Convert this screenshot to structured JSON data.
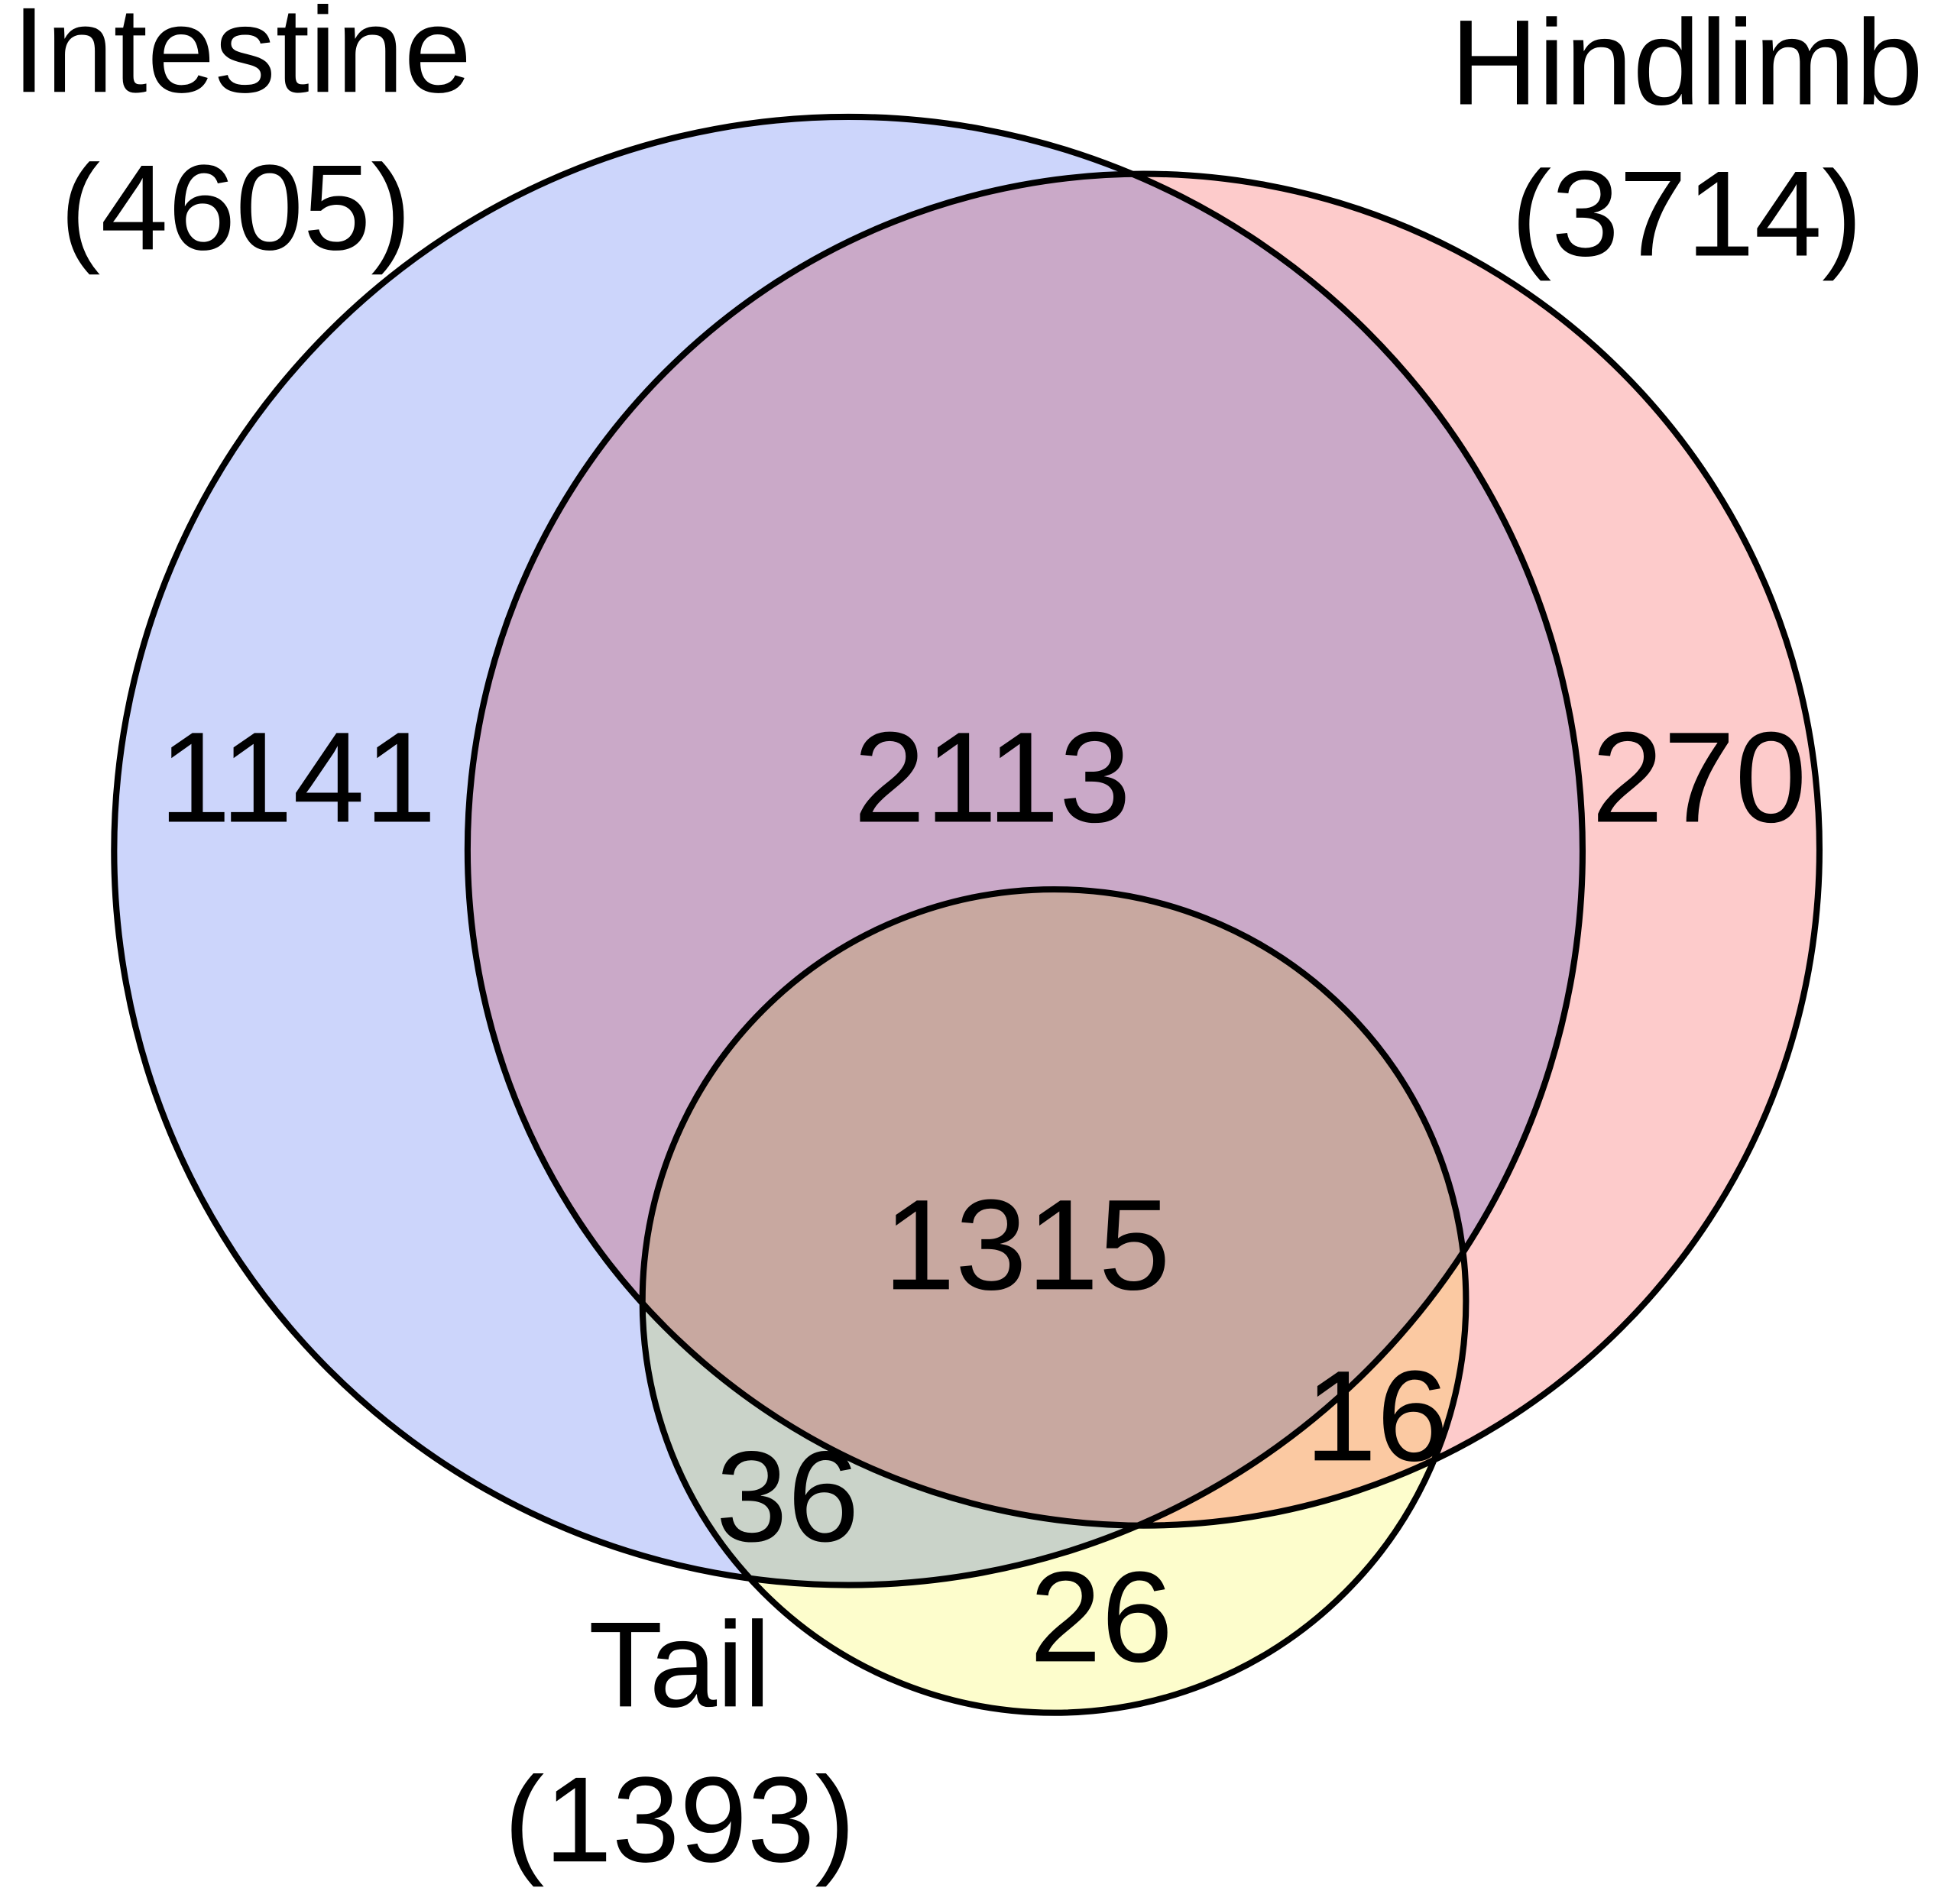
{
  "chart_data": {
    "type": "venn",
    "sets": [
      {
        "name": "Intestine",
        "value": 4605,
        "value_label": "(4605)",
        "color": "#ccd5fb"
      },
      {
        "name": "Hindlimb",
        "value": 3714,
        "value_label": "(3714)",
        "color": "#fdcbcb"
      },
      {
        "name": "Tail",
        "value": 1393,
        "value_label": "(1393)",
        "color": "#fdfdcc"
      }
    ],
    "regions": {
      "values": [
        1141,
        2113,
        270,
        1315,
        16,
        36,
        26
      ]
    }
  }
}
